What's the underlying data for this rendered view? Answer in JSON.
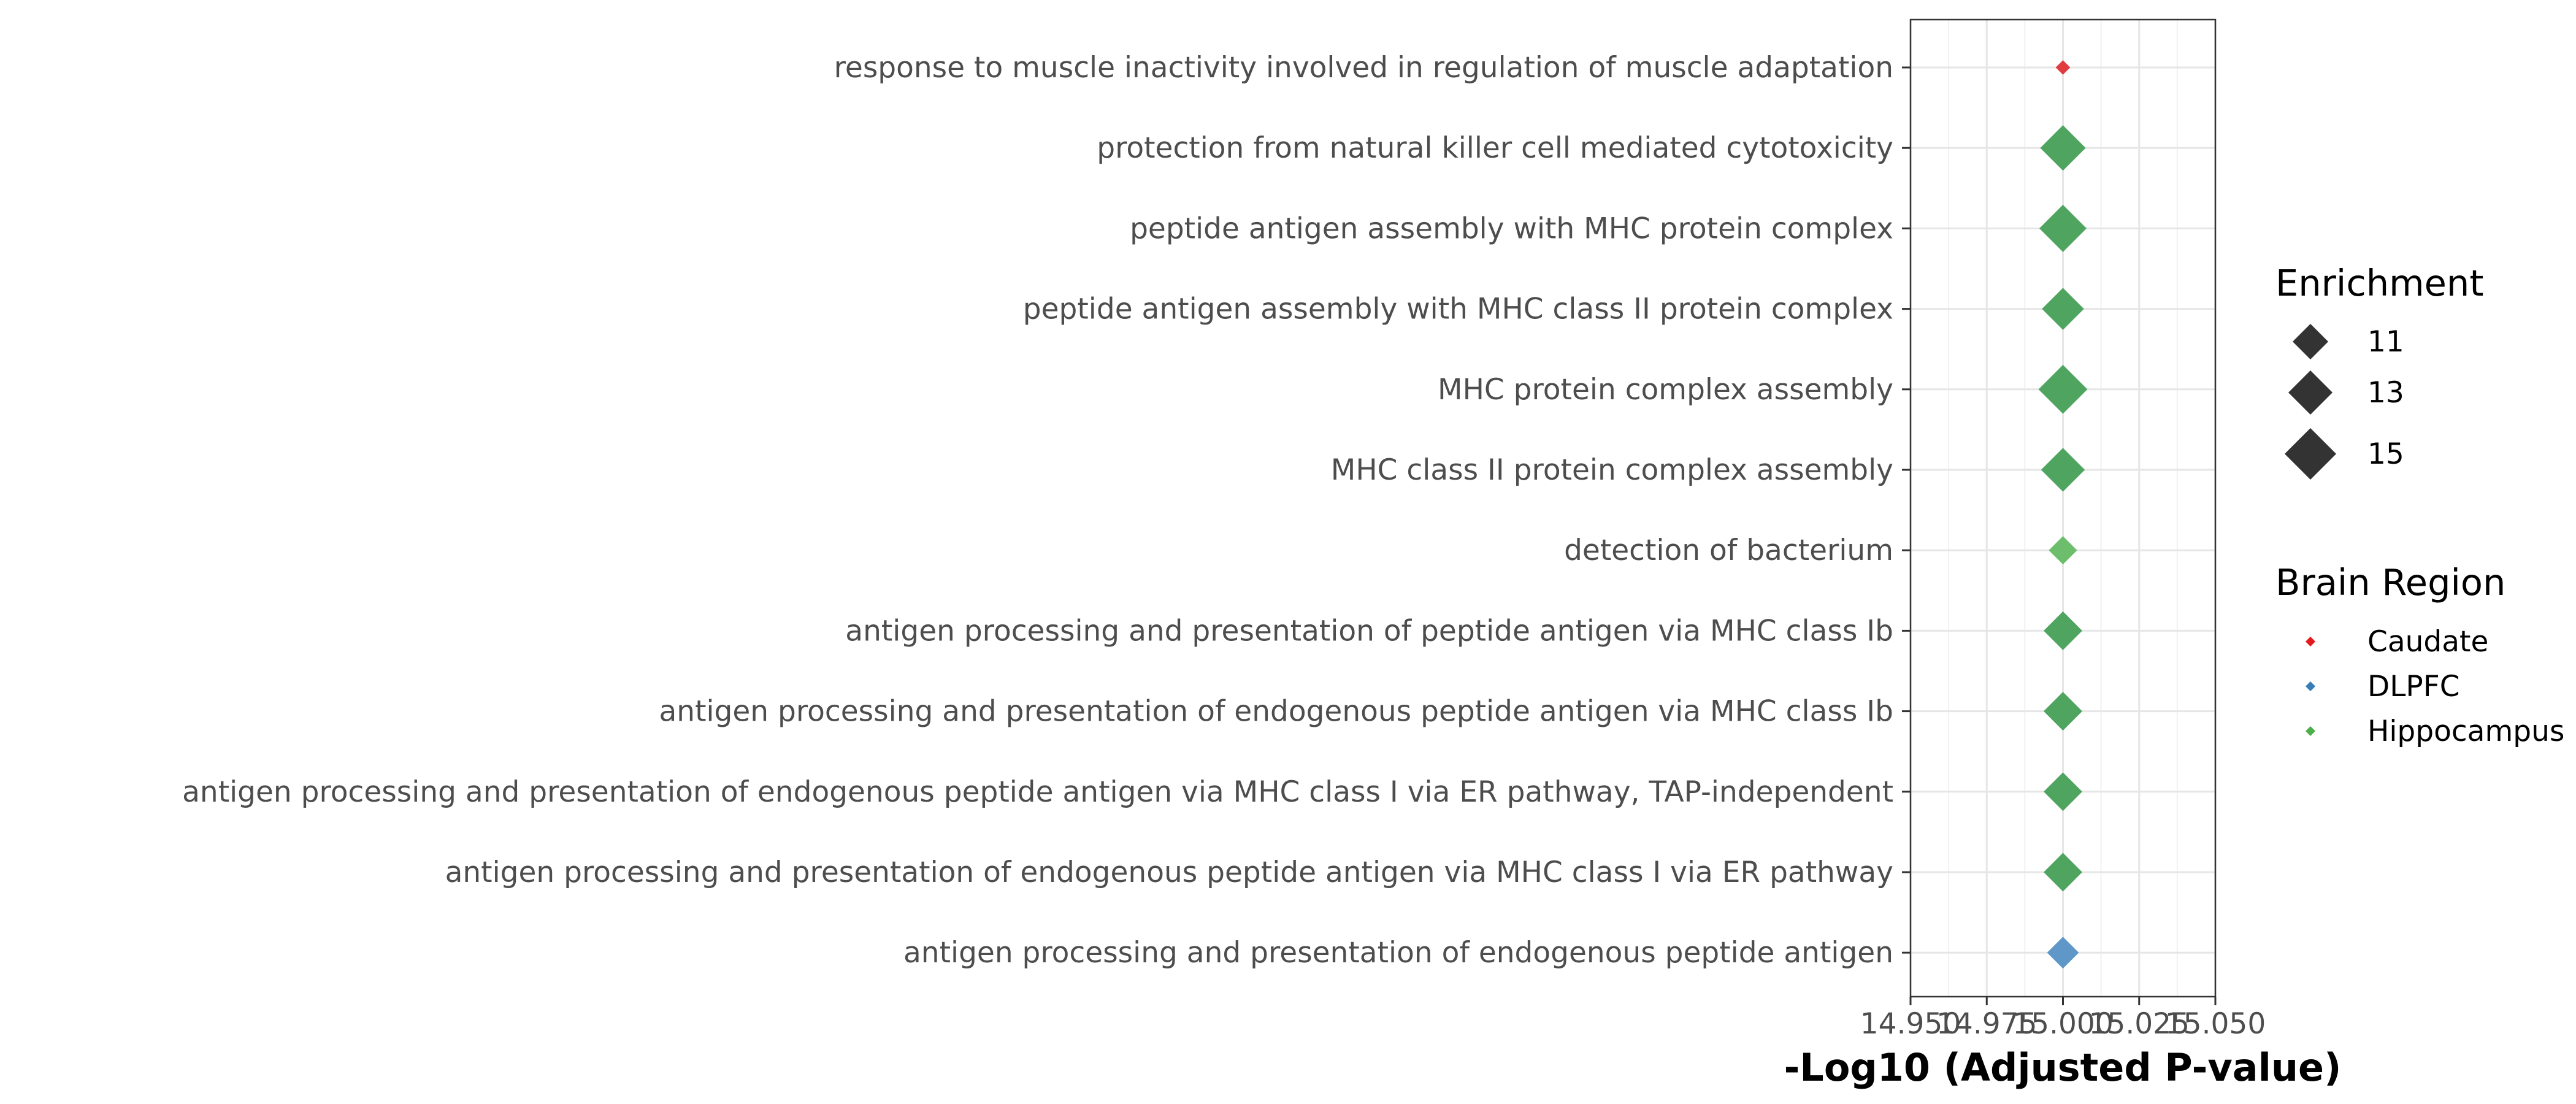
{
  "chart_data": {
    "type": "scatter",
    "title": "",
    "xlabel": "-Log10 (Adjusted P-value)",
    "ylabel": "",
    "xlim": [
      14.95,
      15.05
    ],
    "x_ticks": [
      14.95,
      14.975,
      15.0,
      15.025,
      15.05
    ],
    "x_tick_labels": [
      "14.950",
      "14.975",
      "15.000",
      "15.025",
      "15.050"
    ],
    "grid": true,
    "categories": [
      "response to muscle inactivity involved in regulation of muscle adaptation",
      "protection from natural killer cell mediated cytotoxicity",
      "peptide antigen assembly with MHC protein complex",
      "peptide antigen assembly with MHC class II protein complex",
      "MHC protein complex assembly",
      "MHC class II protein complex assembly",
      "detection of bacterium",
      "antigen processing and presentation of peptide antigen via MHC class Ib",
      "antigen processing and presentation of endogenous peptide antigen via MHC class Ib",
      "antigen processing and presentation of endogenous peptide antigen via MHC class I via ER pathway, TAP-independent",
      "antigen processing and presentation of endogenous peptide antigen via MHC class I via ER pathway",
      "antigen processing and presentation of endogenous peptide antigen"
    ],
    "points": [
      {
        "term": "response to muscle inactivity involved in regulation of muscle adaptation",
        "x": 15.0,
        "enrichment": 6,
        "region": "Caudate"
      },
      {
        "term": "protection from natural killer cell mediated cytotoxicity",
        "x": 15.0,
        "enrichment": 15,
        "region": "Hippocampus"
      },
      {
        "term": "peptide antigen assembly with MHC protein complex",
        "x": 15.0,
        "enrichment": 15.5,
        "region": "Hippocampus"
      },
      {
        "term": "peptide antigen assembly with MHC class II protein complex",
        "x": 15.0,
        "enrichment": 14,
        "region": "Hippocampus"
      },
      {
        "term": "MHC protein complex assembly",
        "x": 15.0,
        "enrichment": 16,
        "region": "Hippocampus"
      },
      {
        "term": "MHC class II protein complex assembly",
        "x": 15.0,
        "enrichment": 14.5,
        "region": "Hippocampus"
      },
      {
        "term": "detection of bacterium",
        "x": 15.0,
        "enrichment": 10,
        "region": "Hippocampus-light"
      },
      {
        "term": "antigen processing and presentation of peptide antigen via MHC class Ib",
        "x": 15.0,
        "enrichment": 13,
        "region": "Hippocampus"
      },
      {
        "term": "antigen processing and presentation of endogenous peptide antigen via MHC class Ib",
        "x": 15.0,
        "enrichment": 13,
        "region": "Hippocampus"
      },
      {
        "term": "antigen processing and presentation of endogenous peptide antigen via MHC class I via ER pathway, TAP-independent",
        "x": 15.0,
        "enrichment": 13,
        "region": "Hippocampus"
      },
      {
        "term": "antigen processing and presentation of endogenous peptide antigen via MHC class I via ER pathway",
        "x": 15.0,
        "enrichment": 13,
        "region": "Hippocampus"
      },
      {
        "term": "antigen processing and presentation of endogenous peptide antigen",
        "x": 15.0,
        "enrichment": 11,
        "region": "DLPFC"
      }
    ],
    "size_legend": {
      "title": "Enrichment",
      "values": [
        11,
        13,
        15
      ]
    },
    "color_legend": {
      "title": "Brain Region",
      "entries": [
        {
          "name": "Caudate",
          "color": "#e41a1c"
        },
        {
          "name": "DLPFC",
          "color": "#377eb8"
        },
        {
          "name": "Hippocampus",
          "color": "#4daf4a"
        }
      ]
    },
    "colors": {
      "Caudate": "#e23b3e",
      "DLPFC": "#5f98c8",
      "Hippocampus": "#4fa560",
      "Hippocampus-light": "#6cbe6c",
      "legend_shape": "#333333"
    },
    "legend_position": "right"
  }
}
